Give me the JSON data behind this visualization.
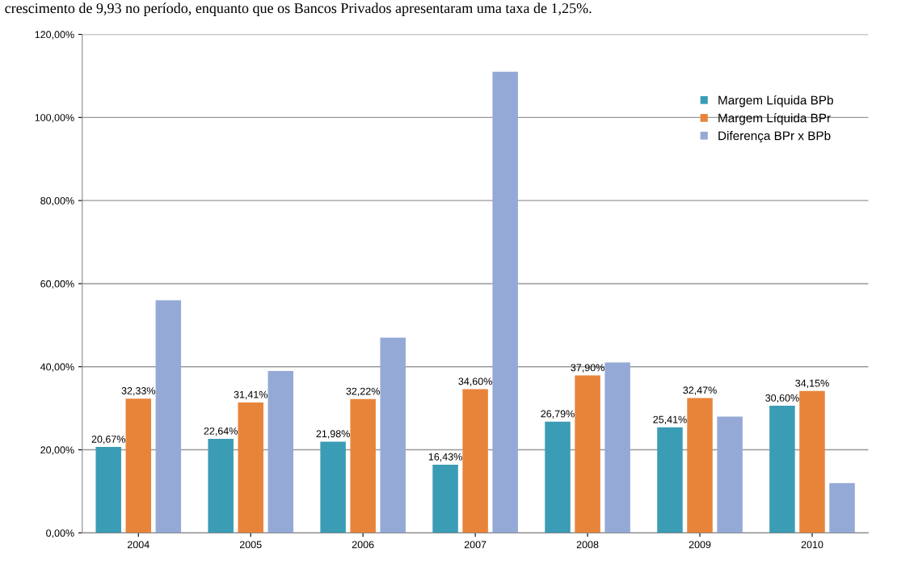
{
  "chart_data": {
    "type": "bar",
    "categories": [
      "2004",
      "2005",
      "2006",
      "2007",
      "2008",
      "2009",
      "2010"
    ],
    "series": [
      {
        "name": "Margem Líquida BPb",
        "color": "#3b9cb5",
        "values": [
          20.67,
          22.64,
          21.98,
          16.43,
          26.79,
          25.41,
          30.6
        ],
        "value_labels": [
          "20,67%",
          "22,64%",
          "21,98%",
          "16,43%",
          "26,79%",
          "25,41%",
          "30,60%"
        ]
      },
      {
        "name": "Margem Líquida BPr",
        "color": "#e8843a",
        "values": [
          32.33,
          31.41,
          32.22,
          34.6,
          37.9,
          32.47,
          34.15
        ],
        "value_labels": [
          "32,33%",
          "31,41%",
          "32,22%",
          "34,60%",
          "37,90%",
          "32,47%",
          "34,15%"
        ]
      },
      {
        "name": "Diferença BPr x BPb",
        "color": "#95a9d6",
        "values": [
          56,
          39,
          47,
          111,
          41,
          28,
          12
        ]
      }
    ],
    "ylim": [
      0,
      120
    ],
    "yticks": [
      {
        "value": 0,
        "label": "0,00%"
      },
      {
        "value": 20,
        "label": "20,00%"
      },
      {
        "value": 40,
        "label": "40,00%"
      },
      {
        "value": 60,
        "label": "60,00%"
      },
      {
        "value": 80,
        "label": "80,00%"
      },
      {
        "value": 100,
        "label": "100,00%"
      },
      {
        "value": 120,
        "label": "120,00%"
      }
    ],
    "grid": "y",
    "legend": "top right",
    "annotations": [
      "crescimento de 9,93 no período, enquanto que os Bancos Privados apresentaram uma taxa de 1,25%."
    ]
  }
}
